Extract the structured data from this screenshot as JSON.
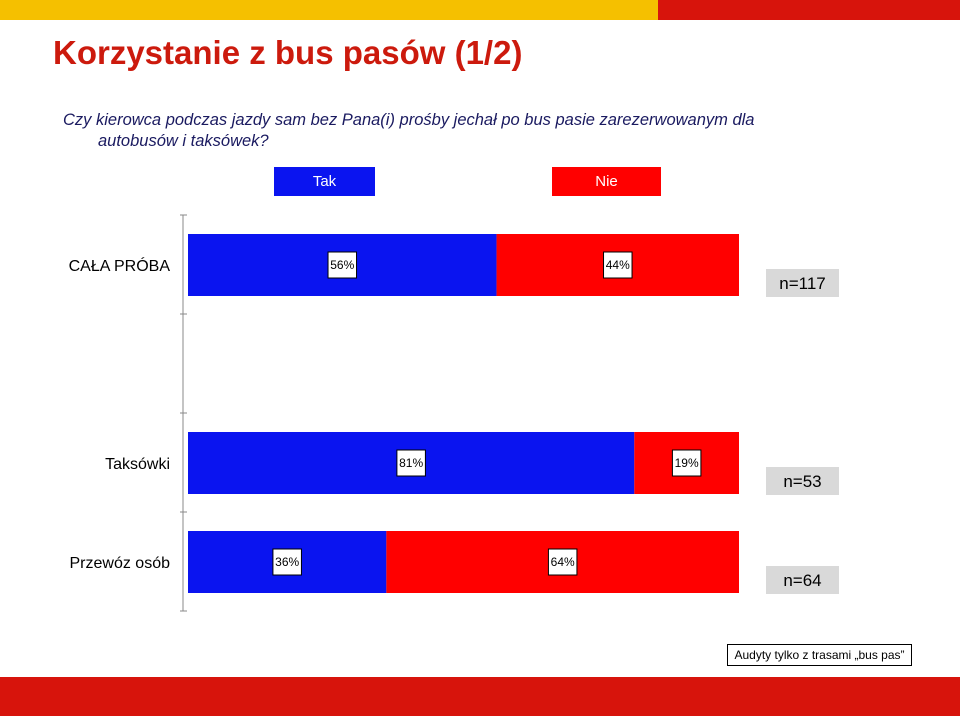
{
  "slide": {
    "title": "Korzystanie z bus pasów (1/2)",
    "question_line1": "Czy kierowca podczas jazdy sam bez Pana(i) prośby jechał po bus pasie zarezerwowanym dla",
    "question_line2": "autobusów i taksówek?",
    "footnote": "Audyty tylko z trasami „bus pas”"
  },
  "colors": {
    "tak": "#0a14f0",
    "nie": "#ff0000",
    "top_band_yellow": "#f5c000",
    "brand_red": "#d7140c",
    "title": "#cc1a0d",
    "n_box": "#d9d9d9"
  },
  "chart_data": {
    "type": "bar",
    "orientation": "horizontal",
    "stacked": true,
    "normalized_100": true,
    "categories": [
      "CAŁA PRÓBA",
      "Taksówki",
      "Przewóz osób"
    ],
    "series": [
      {
        "name": "Tak",
        "values": [
          56,
          81,
          36
        ]
      },
      {
        "name": "Nie",
        "values": [
          44,
          19,
          64
        ]
      }
    ],
    "value_labels": [
      [
        "56%",
        "44%"
      ],
      [
        "81%",
        "19%"
      ],
      [
        "36%",
        "64%"
      ]
    ],
    "sample_sizes": [
      "n=117",
      "n=53",
      "n=64"
    ],
    "xlim": [
      0,
      100
    ],
    "legend_position": "top",
    "grid": false
  }
}
